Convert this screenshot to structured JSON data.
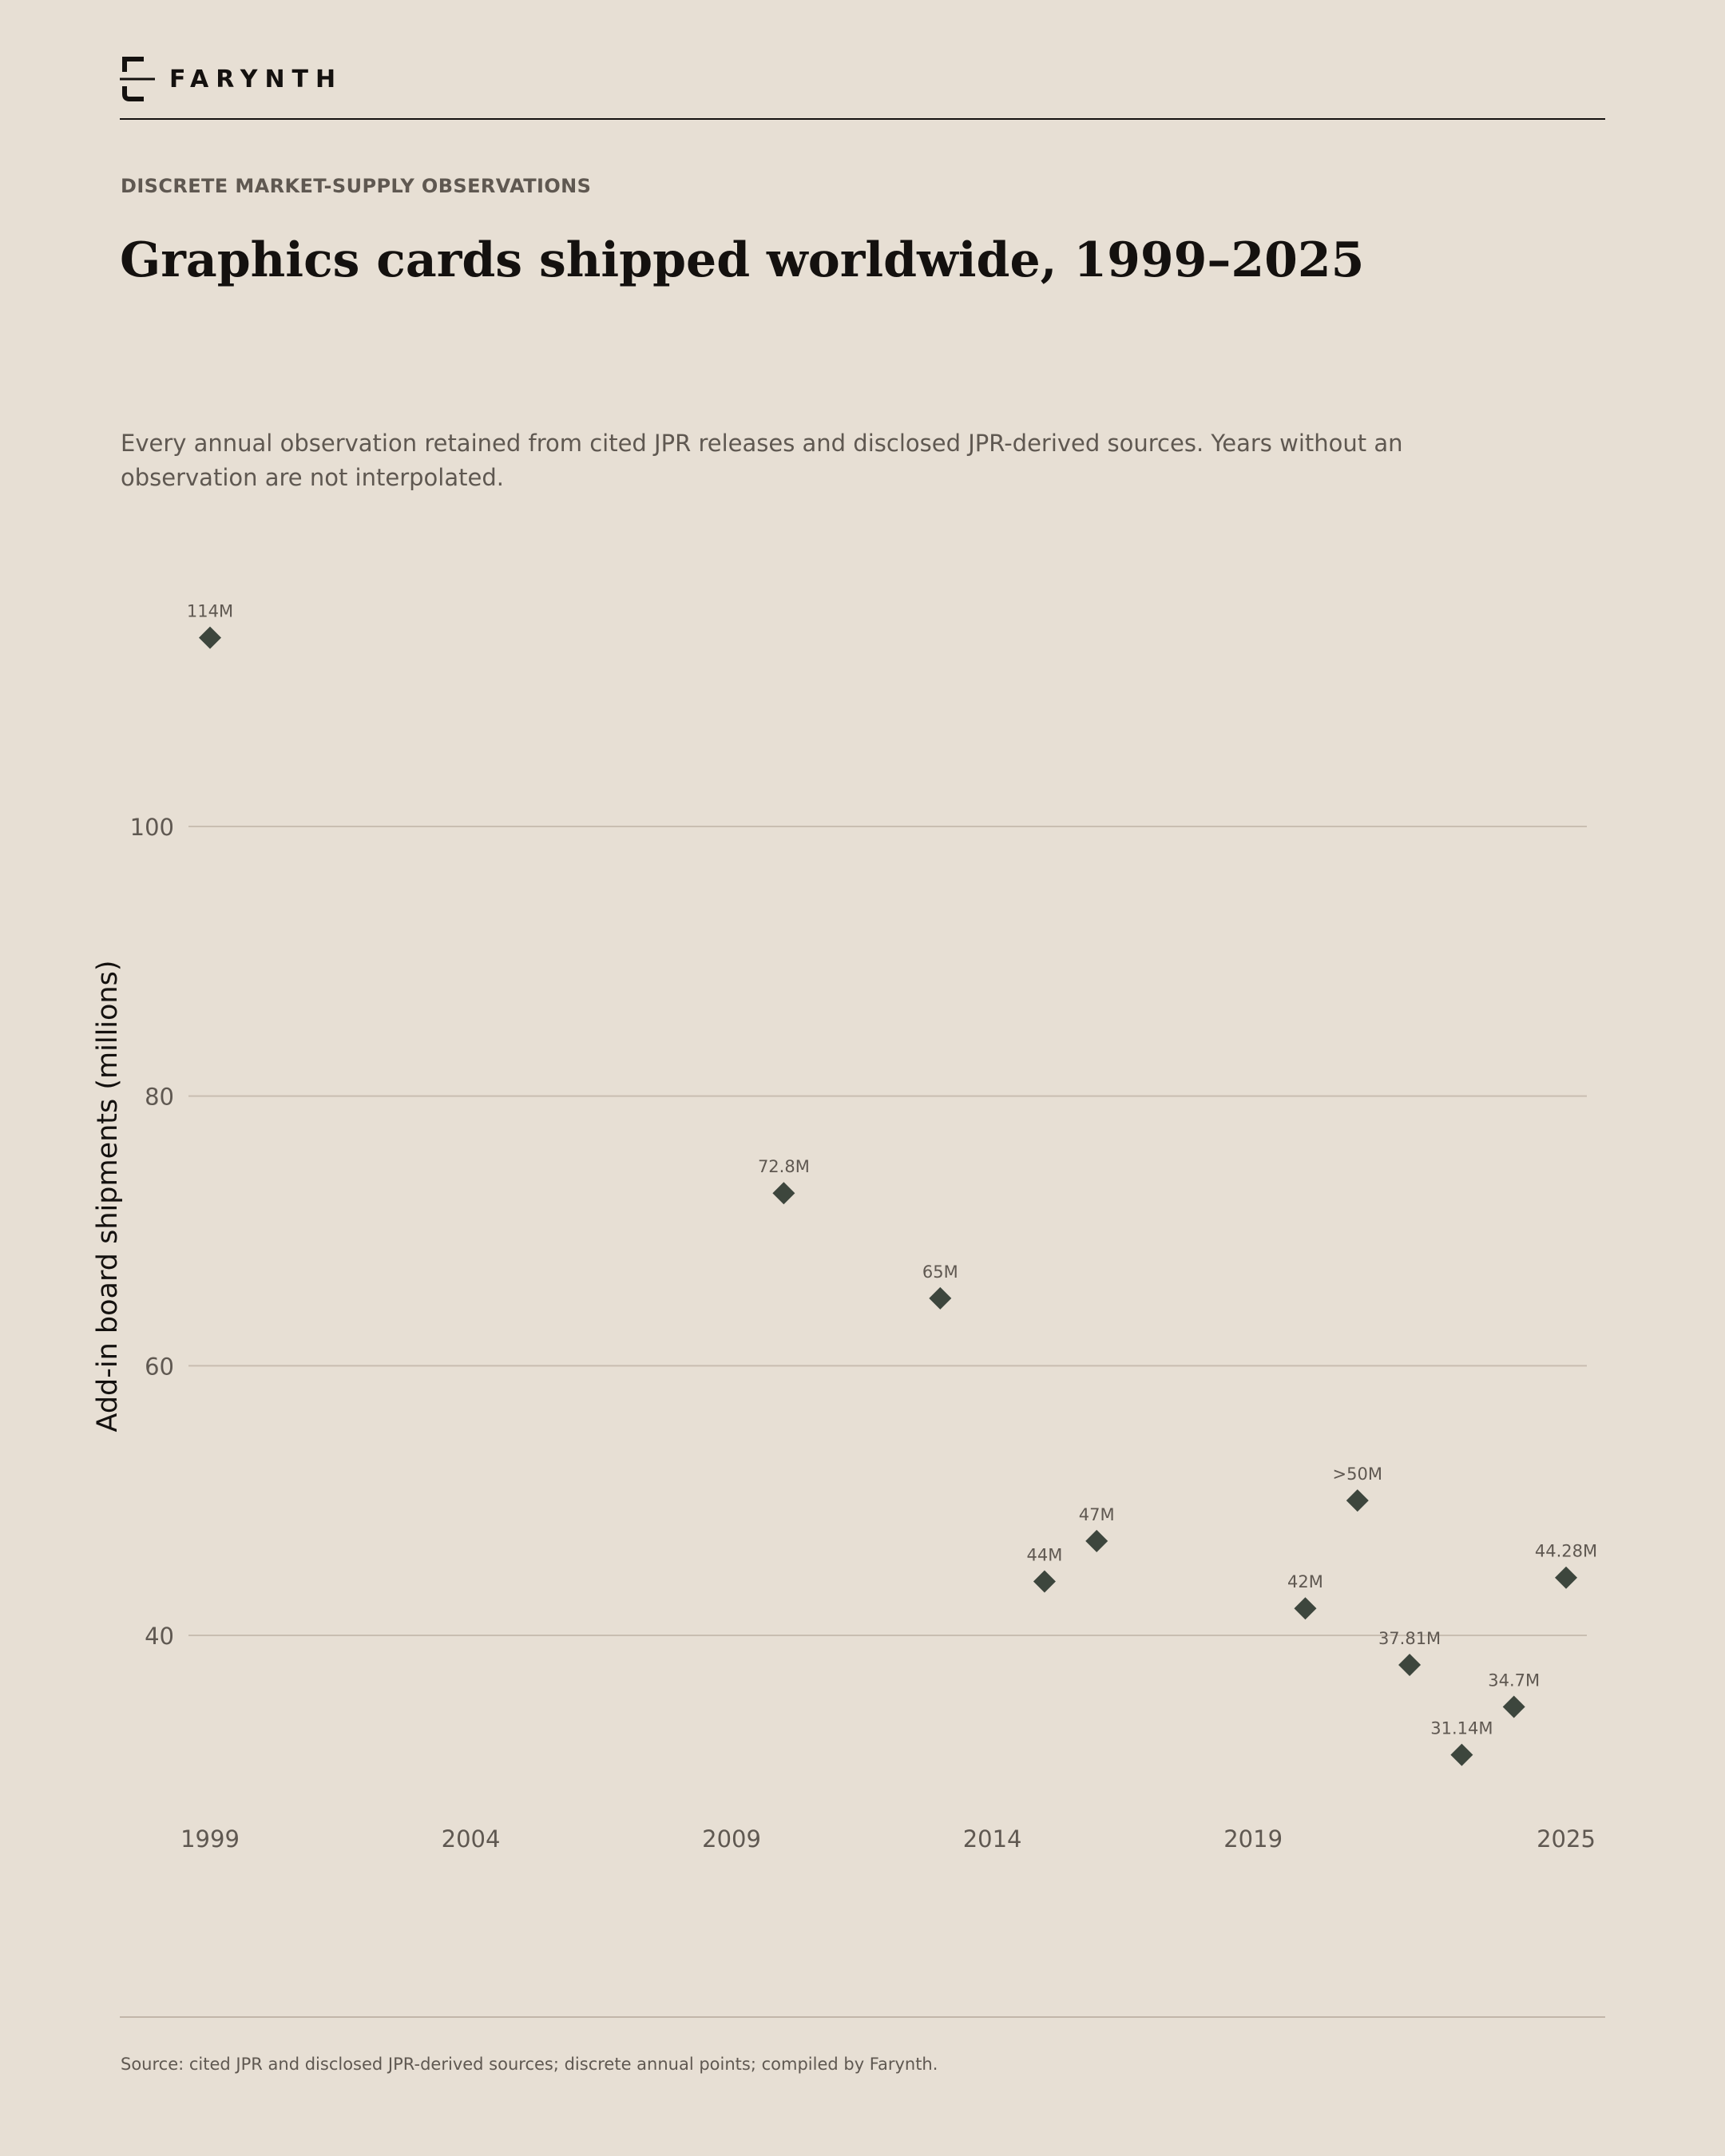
{
  "brand": {
    "name": "FARYNTH",
    "logo_icon": "bracket-logo-icon"
  },
  "header": {
    "eyebrow": "DISCRETE MARKET-SUPPLY OBSERVATIONS",
    "title": "Graphics cards shipped worldwide, 1999–2025",
    "subtitle": "Every annual observation retained from cited JPR releases and disclosed JPR-derived sources. Years without an observation are not interpolated."
  },
  "footer": {
    "source": "Source: cited JPR and disclosed JPR-derived sources; discrete annual points; compiled by Farynth."
  },
  "colors": {
    "background": "#e7dfd4",
    "ink": "#14110f",
    "muted": "#5f5851",
    "grid": "#c9beb1",
    "marker": "#3d463d"
  },
  "chart_data": {
    "type": "scatter",
    "marker": "diamond",
    "title": "Graphics cards shipped worldwide, 1999–2025",
    "xlabel": "",
    "ylabel": "Add-in board shipments (millions)",
    "xlim": [
      1999,
      2025
    ],
    "ylim": [
      28,
      116
    ],
    "xticks": [
      1999,
      2004,
      2009,
      2014,
      2019,
      2025
    ],
    "yticks": [
      40,
      60,
      80,
      100
    ],
    "grid": "horizontal",
    "legend": "none",
    "points": [
      {
        "x": 1999,
        "y": 114,
        "label": "114M"
      },
      {
        "x": 2010,
        "y": 72.8,
        "label": "72.8M"
      },
      {
        "x": 2013,
        "y": 65,
        "label": "65M"
      },
      {
        "x": 2015,
        "y": 44,
        "label": "44M"
      },
      {
        "x": 2016,
        "y": 47,
        "label": "47M"
      },
      {
        "x": 2020,
        "y": 42,
        "label": "42M"
      },
      {
        "x": 2021,
        "y": 50,
        "label": ">50M"
      },
      {
        "x": 2022,
        "y": 37.81,
        "label": "37.81M"
      },
      {
        "x": 2023,
        "y": 31.14,
        "label": "31.14M"
      },
      {
        "x": 2024,
        "y": 34.7,
        "label": "34.7M"
      },
      {
        "x": 2025,
        "y": 44.28,
        "label": "44.28M"
      }
    ]
  }
}
